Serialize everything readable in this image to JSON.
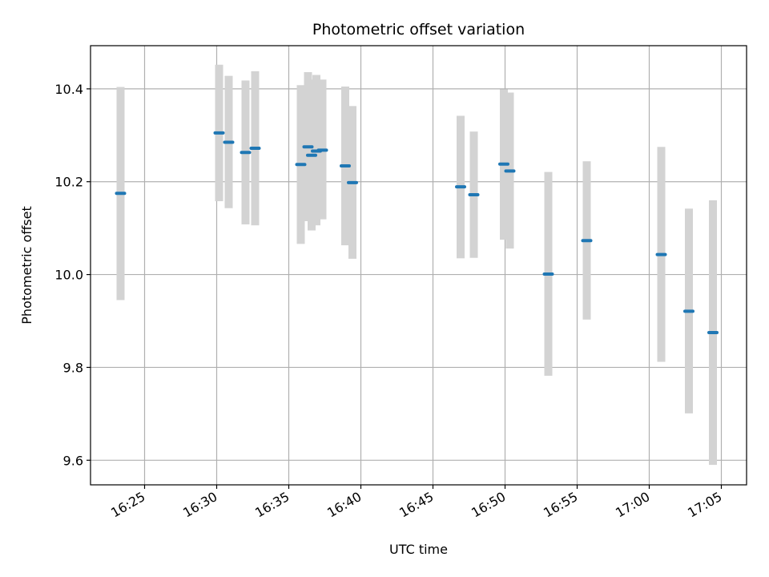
{
  "chart_data": {
    "type": "scatter",
    "title": "Photometric offset variation",
    "xlabel": "UTC time",
    "ylabel": "Photometric offset",
    "xlim": [
      "16:21:15",
      "17:06:45"
    ],
    "ylim": [
      9.547,
      10.493
    ],
    "grid": true,
    "xticks": [
      "16:25",
      "16:30",
      "16:35",
      "16:40",
      "16:45",
      "16:50",
      "16:55",
      "17:00",
      "17:05"
    ],
    "yticks": [
      "9.6",
      "9.8",
      "10.0",
      "10.2",
      "10.4"
    ],
    "series": [
      {
        "points": [
          {
            "t": "16:23:20",
            "y": 10.175,
            "lo": 9.945,
            "hi": 10.404
          },
          {
            "t": "16:30:10",
            "y": 10.305,
            "lo": 10.158,
            "hi": 10.452
          },
          {
            "t": "16:30:50",
            "y": 10.285,
            "lo": 10.143,
            "hi": 10.428
          },
          {
            "t": "16:32:00",
            "y": 10.263,
            "lo": 10.108,
            "hi": 10.418
          },
          {
            "t": "16:32:40",
            "y": 10.272,
            "lo": 10.106,
            "hi": 10.438
          },
          {
            "t": "16:35:50",
            "y": 10.237,
            "lo": 10.066,
            "hi": 10.408
          },
          {
            "t": "16:36:20",
            "y": 10.275,
            "lo": 10.115,
            "hi": 10.436
          },
          {
            "t": "16:36:35",
            "y": 10.257,
            "lo": 10.095,
            "hi": 10.42
          },
          {
            "t": "16:36:55",
            "y": 10.266,
            "lo": 10.106,
            "hi": 10.43
          },
          {
            "t": "16:37:20",
            "y": 10.268,
            "lo": 10.119,
            "hi": 10.42
          },
          {
            "t": "16:38:55",
            "y": 10.234,
            "lo": 10.063,
            "hi": 10.405
          },
          {
            "t": "16:39:25",
            "y": 10.198,
            "lo": 10.034,
            "hi": 10.363
          },
          {
            "t": "16:46:55",
            "y": 10.189,
            "lo": 10.035,
            "hi": 10.342
          },
          {
            "t": "16:47:50",
            "y": 10.172,
            "lo": 10.036,
            "hi": 10.308
          },
          {
            "t": "16:49:55",
            "y": 10.238,
            "lo": 10.075,
            "hi": 10.399
          },
          {
            "t": "16:50:20",
            "y": 10.223,
            "lo": 10.056,
            "hi": 10.392
          },
          {
            "t": "16:53:00",
            "y": 10.001,
            "lo": 9.782,
            "hi": 10.221
          },
          {
            "t": "16:55:40",
            "y": 10.073,
            "lo": 9.903,
            "hi": 10.244
          },
          {
            "t": "17:00:50",
            "y": 10.043,
            "lo": 9.812,
            "hi": 10.275
          },
          {
            "t": "17:02:45",
            "y": 9.921,
            "lo": 9.701,
            "hi": 10.142
          },
          {
            "t": "17:04:25",
            "y": 9.875,
            "lo": 9.59,
            "hi": 10.16
          }
        ]
      }
    ]
  }
}
